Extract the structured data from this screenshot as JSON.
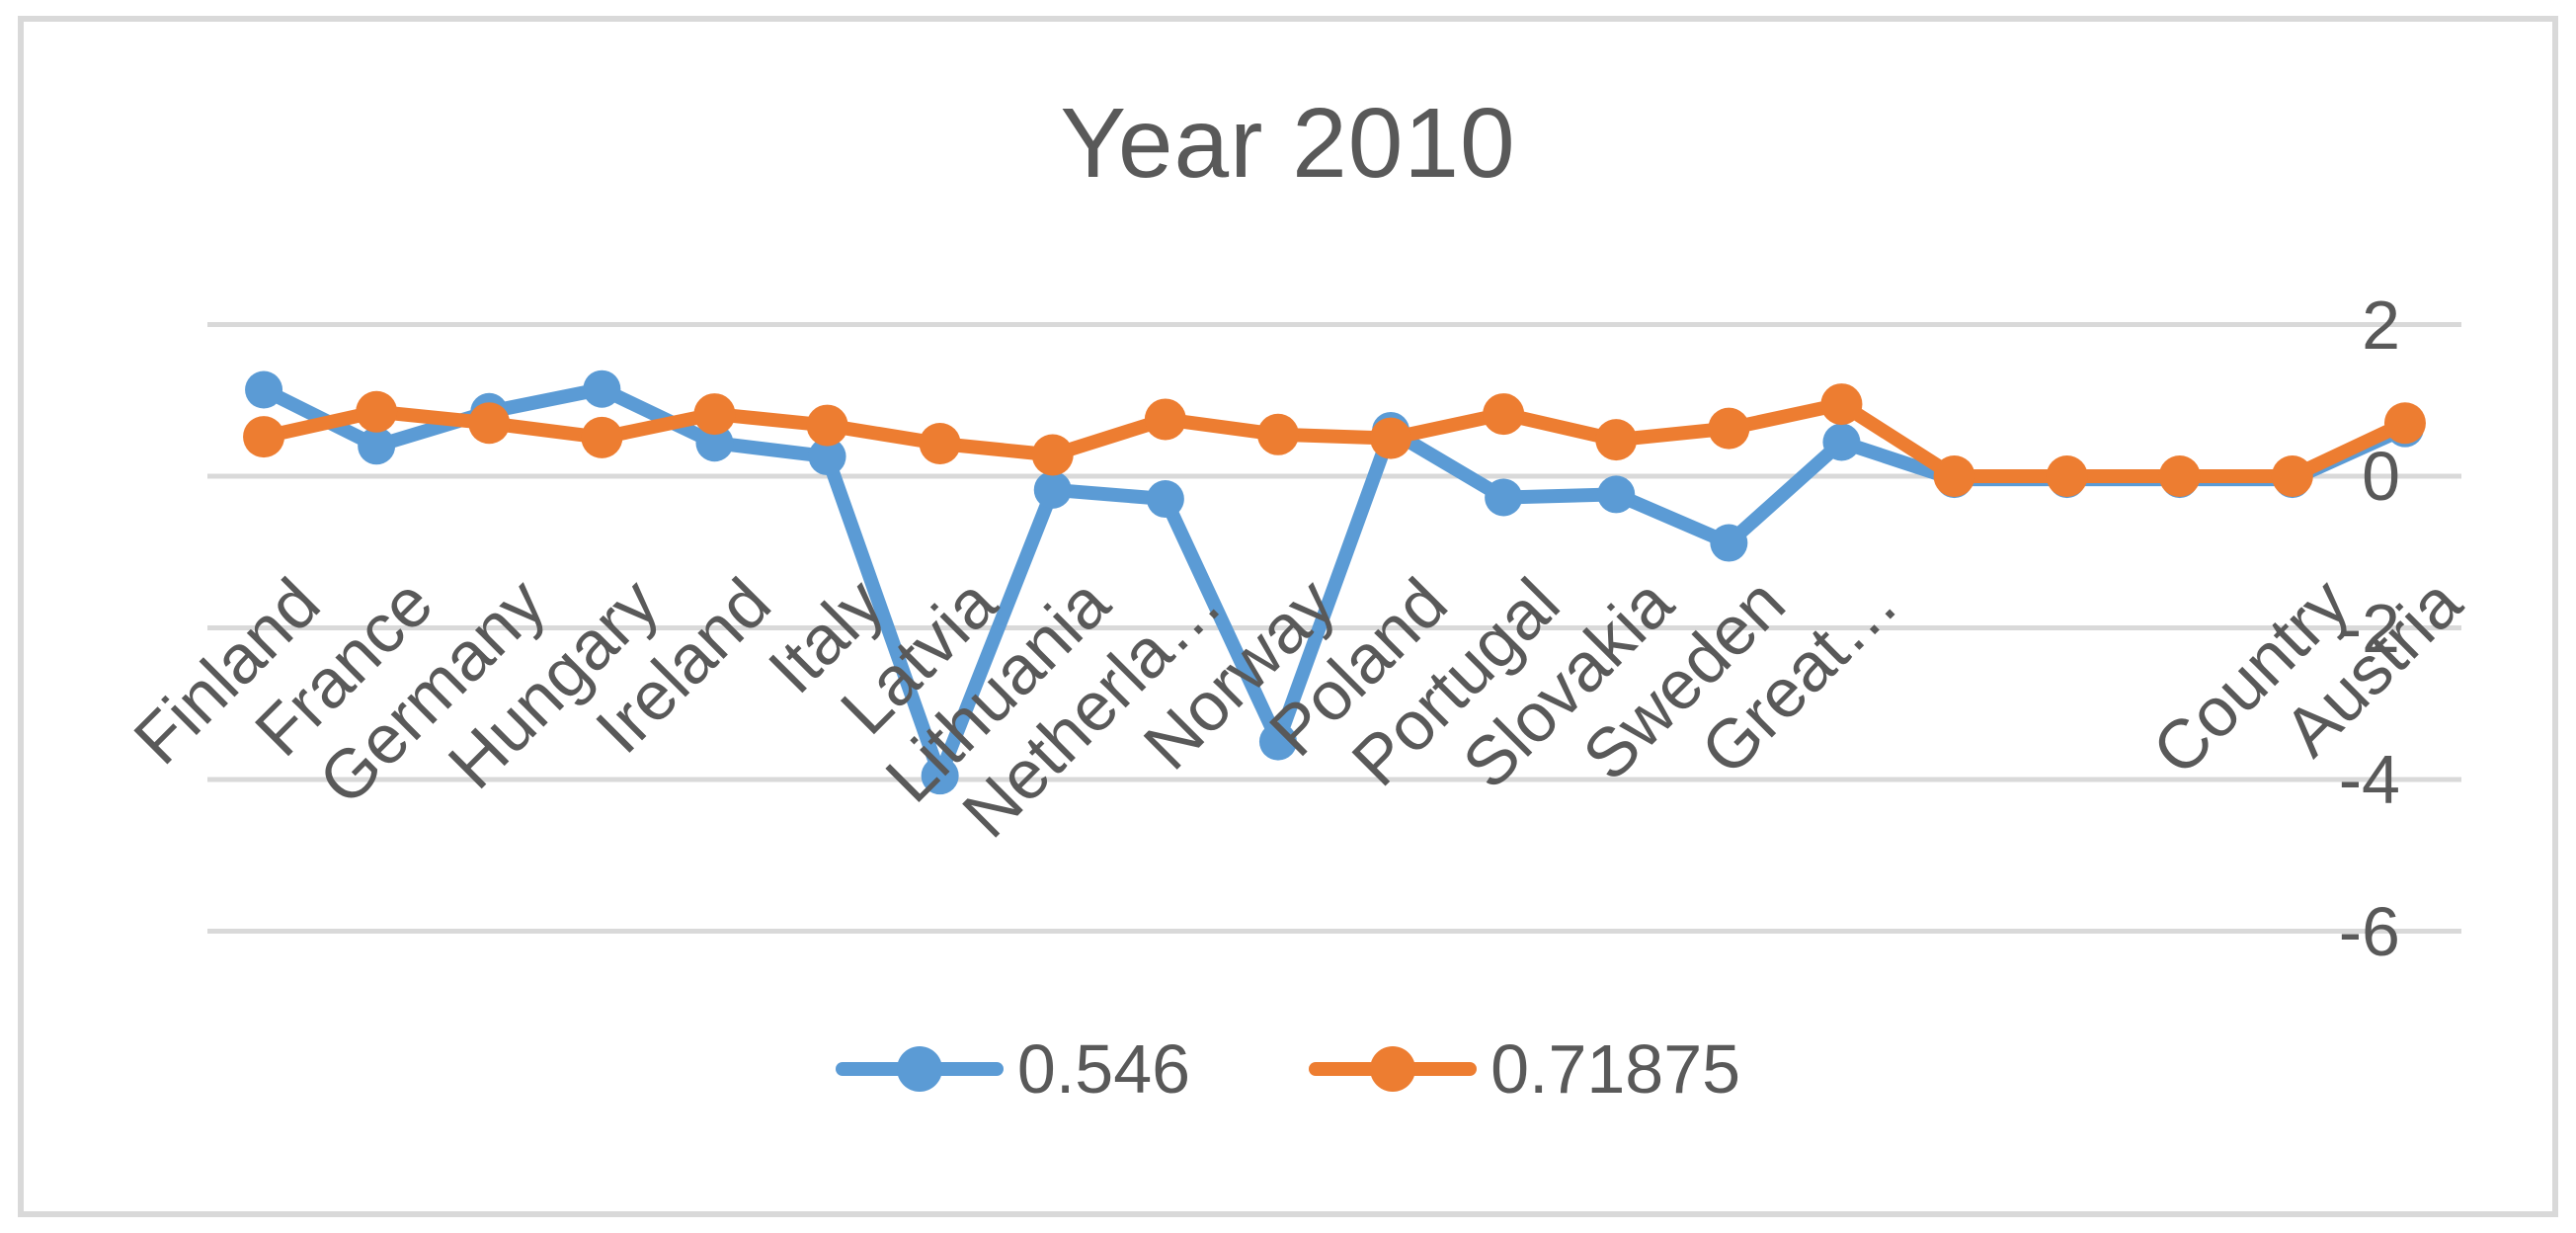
{
  "chart": {
    "title": "Year 2010",
    "colors": {
      "series_blue": "#5B9BD5",
      "series_orange": "#ED7D31",
      "gridline": "#D9D9D9",
      "text": "#595959",
      "border": "#D9D9D9",
      "background": "#FFFFFF"
    }
  },
  "chart_data": {
    "type": "line",
    "title": "Year 2010",
    "categories": [
      "Finland",
      "France",
      "Germany",
      "Hungary",
      "Ireland",
      "Italy",
      "Latvia",
      "Lithuania",
      "Netherla…",
      "Norway",
      "Poland",
      "Portugal",
      "Slovakia",
      "Sweden",
      "Great…",
      "",
      "",
      "",
      "Country",
      "Austria"
    ],
    "series": [
      {
        "name": "0.546",
        "color": "#5B9BD5",
        "marker": "circle",
        "values": [
          1.14,
          0.4,
          0.85,
          1.15,
          0.44,
          0.26,
          -3.95,
          -0.18,
          -0.3,
          -3.5,
          0.6,
          -0.28,
          -0.24,
          -0.88,
          0.45,
          -0.04,
          -0.04,
          -0.04,
          -0.04,
          0.63
        ]
      },
      {
        "name": "0.71875",
        "color": "#ED7D31",
        "marker": "circle",
        "values": [
          0.52,
          0.85,
          0.7,
          0.51,
          0.82,
          0.67,
          0.43,
          0.28,
          0.75,
          0.55,
          0.5,
          0.82,
          0.48,
          0.63,
          0.95,
          0.0,
          0.0,
          0.0,
          0.0,
          0.7
        ]
      }
    ],
    "yticks": [
      2,
      0,
      -2,
      -4,
      -6
    ],
    "ylim": [
      -6,
      2
    ],
    "grid": true,
    "legend_position": "bottom",
    "x_label_rotation_deg": 45
  }
}
